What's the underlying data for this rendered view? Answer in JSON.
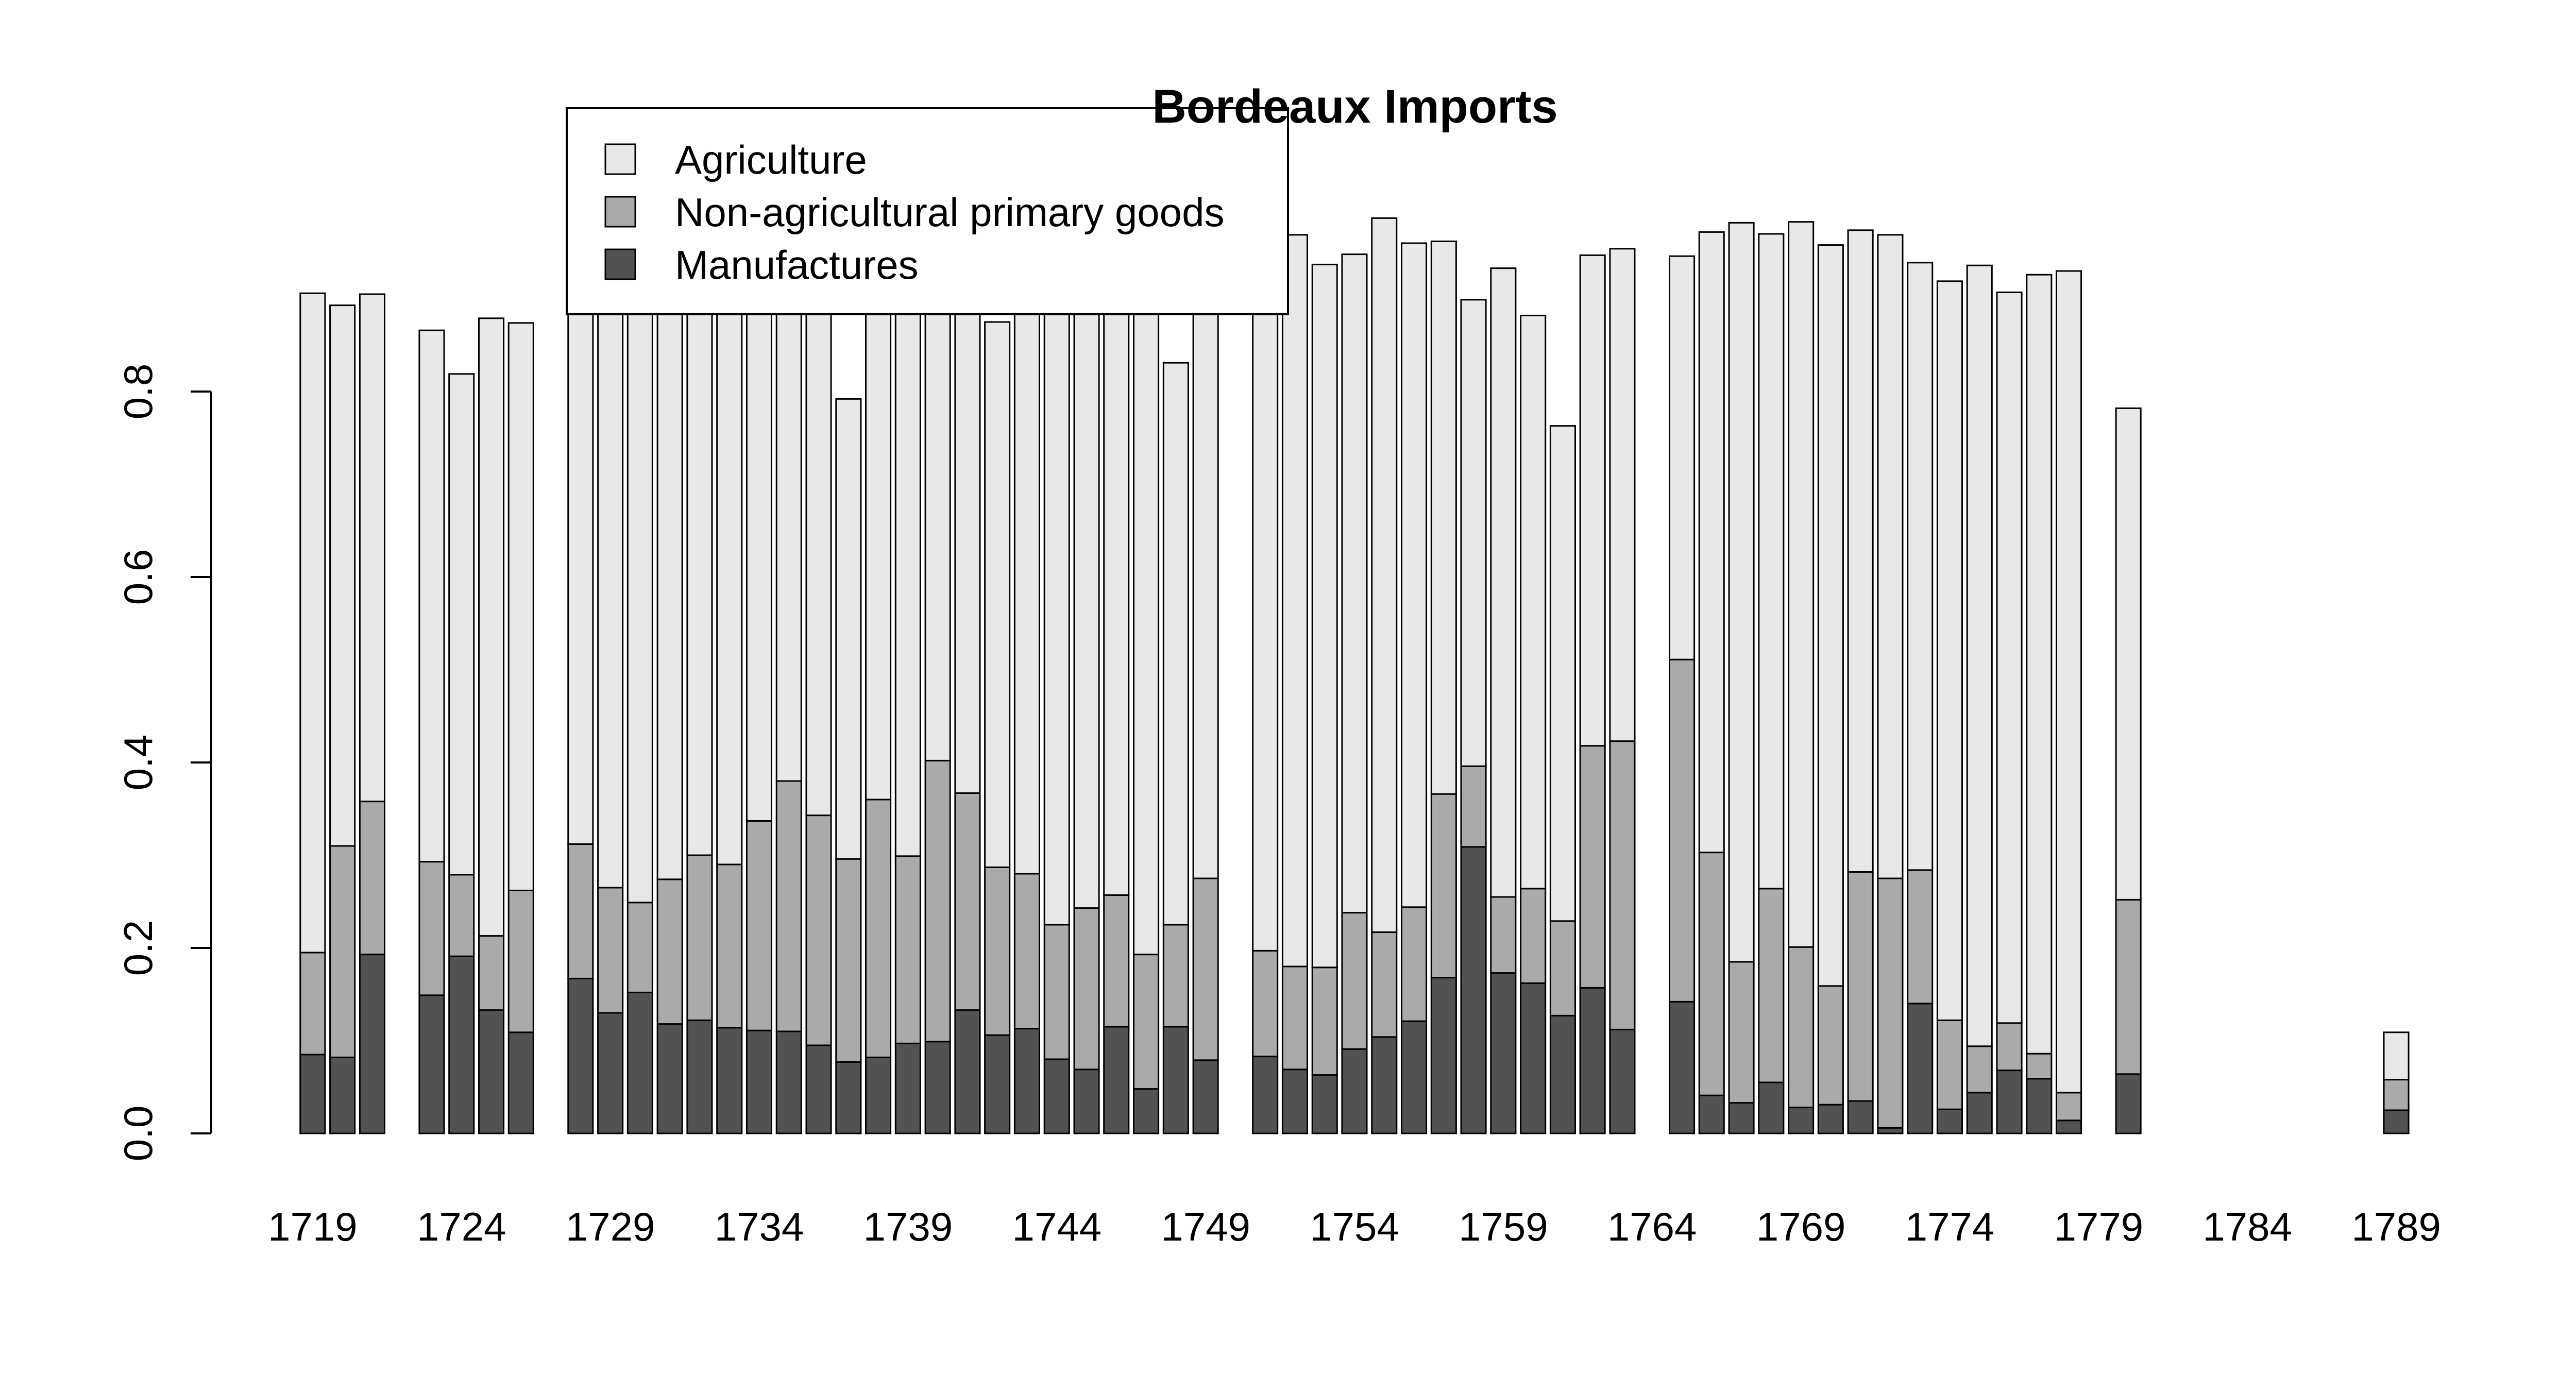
{
  "chart_data": {
    "type": "bar",
    "stacked": true,
    "title": "Bordeaux Imports",
    "xlabel": "",
    "ylabel": "",
    "ylim": [
      0,
      1.0
    ],
    "y_ticks": [
      "0.0",
      "0.2",
      "0.4",
      "0.6",
      "0.8"
    ],
    "x_tick_labels": [
      "1719",
      "1724",
      "1729",
      "1734",
      "1739",
      "1744",
      "1749",
      "1754",
      "1759",
      "1764",
      "1769",
      "1774",
      "1779",
      "1784",
      "1789"
    ],
    "grid": false,
    "legend_position": "top-left",
    "x": [
      1719,
      1720,
      1721,
      1722,
      1723,
      1724,
      1725,
      1726,
      1727,
      1728,
      1729,
      1730,
      1731,
      1732,
      1733,
      1734,
      1735,
      1736,
      1737,
      1738,
      1739,
      1740,
      1741,
      1742,
      1743,
      1744,
      1745,
      1746,
      1747,
      1748,
      1749,
      1750,
      1751,
      1752,
      1753,
      1754,
      1755,
      1756,
      1757,
      1758,
      1759,
      1760,
      1761,
      1762,
      1763,
      1764,
      1765,
      1766,
      1767,
      1768,
      1769,
      1770,
      1771,
      1772,
      1773,
      1774,
      1775,
      1776,
      1777,
      1778,
      1779,
      1780,
      1781,
      1782,
      1783,
      1784,
      1785,
      1786,
      1787,
      1788,
      1789
    ],
    "series": [
      {
        "name": "Manufactures",
        "color": "#525252",
        "values": [
          0.085,
          0.082,
          0.193,
          null,
          0.149,
          0.191,
          0.133,
          0.109,
          null,
          0.167,
          0.13,
          0.152,
          0.118,
          0.122,
          0.114,
          0.111,
          0.11,
          0.095,
          0.077,
          0.082,
          0.097,
          0.099,
          0.133,
          0.106,
          0.113,
          0.08,
          0.069,
          0.115,
          0.048,
          0.115,
          0.079,
          null,
          0.083,
          0.069,
          0.063,
          0.091,
          0.104,
          0.121,
          0.168,
          0.309,
          0.173,
          0.162,
          0.127,
          0.157,
          0.112,
          null,
          0.142,
          0.041,
          0.033,
          0.055,
          0.028,
          0.031,
          0.035,
          0.006,
          0.14,
          0.026,
          0.044,
          0.068,
          0.059,
          0.014,
          null,
          0.064,
          null,
          null,
          null,
          null,
          null,
          null,
          null,
          null,
          0.025
        ]
      },
      {
        "name": "Non-agricultural primary goods",
        "color": "#aaaaaa",
        "values": [
          0.11,
          0.228,
          0.165,
          null,
          0.144,
          0.088,
          0.08,
          0.153,
          null,
          0.145,
          0.135,
          0.097,
          0.156,
          0.178,
          0.176,
          0.226,
          0.27,
          0.248,
          0.219,
          0.278,
          0.202,
          0.303,
          0.234,
          0.181,
          0.167,
          0.145,
          0.174,
          0.142,
          0.145,
          0.11,
          0.196,
          null,
          0.114,
          0.111,
          0.116,
          0.147,
          0.113,
          0.123,
          0.198,
          0.087,
          0.082,
          0.102,
          0.102,
          0.261,
          0.311,
          null,
          0.369,
          0.262,
          0.152,
          0.209,
          0.173,
          0.128,
          0.247,
          0.269,
          0.144,
          0.096,
          0.05,
          0.051,
          0.027,
          0.03,
          null,
          0.188,
          null,
          null,
          null,
          null,
          null,
          null,
          null,
          null,
          0.033
        ]
      },
      {
        "name": "Agriculture",
        "color": "#e8e8e8",
        "values": [
          0.711,
          0.583,
          0.547,
          null,
          0.573,
          0.54,
          0.666,
          0.612,
          null,
          0.613,
          0.69,
          0.706,
          0.681,
          0.655,
          0.665,
          0.618,
          0.575,
          0.612,
          0.496,
          0.585,
          0.646,
          0.553,
          0.583,
          0.588,
          0.645,
          0.7,
          0.682,
          0.675,
          0.731,
          0.606,
          0.645,
          null,
          0.723,
          0.789,
          0.758,
          0.71,
          0.77,
          0.716,
          0.596,
          0.503,
          0.678,
          0.618,
          0.534,
          0.529,
          0.531,
          null,
          0.435,
          0.669,
          0.797,
          0.706,
          0.782,
          0.799,
          0.692,
          0.694,
          0.655,
          0.797,
          0.842,
          0.788,
          0.84,
          0.886,
          null,
          0.53,
          null,
          null,
          null,
          null,
          null,
          null,
          null,
          null,
          0.051
        ]
      }
    ]
  }
}
